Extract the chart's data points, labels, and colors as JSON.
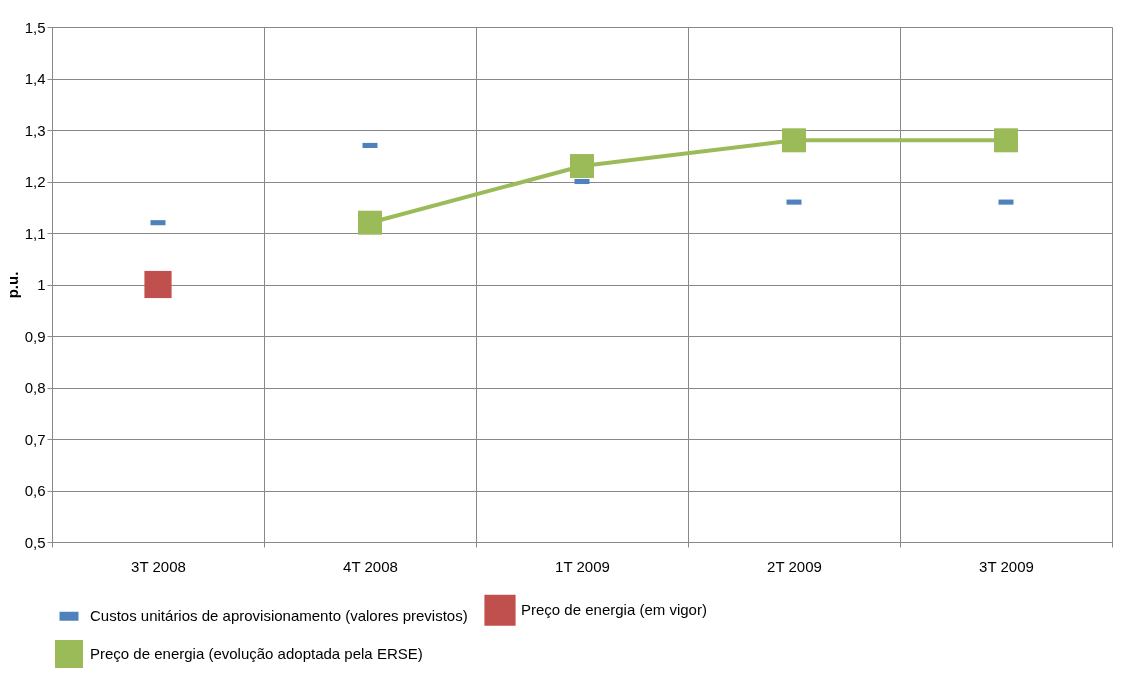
{
  "chart_data": {
    "type": "scatter",
    "ylabel": "p.u.",
    "categories": [
      "3T 2008",
      "4T 2008",
      "1T 2009",
      "2T 2009",
      "3T 2009"
    ],
    "series": [
      {
        "name": "Custos unitários de aprovisionamento (valores previstos)",
        "color": "#4f81bd",
        "values": [
          1.12,
          1.27,
          1.2,
          1.16,
          1.16
        ]
      },
      {
        "name": "Preço de energia (em vigor)",
        "color": "#c0504d",
        "marker": "square",
        "values": [
          1.0,
          null,
          null,
          null,
          null
        ]
      },
      {
        "name": "Preço de energia (evolução adoptada  pela ERSE)",
        "color": "#9bbb59",
        "type": "line",
        "marker": "square",
        "values": [
          null,
          1.12,
          1.23,
          1.28,
          1.28
        ]
      }
    ],
    "ylim": [
      0.5,
      1.5
    ],
    "yticks": [
      {
        "value": 0.5,
        "label": "0,5"
      },
      {
        "value": 0.6,
        "label": "0,6"
      },
      {
        "value": 0.7,
        "label": "0,7"
      },
      {
        "value": 0.8,
        "label": "0,8"
      },
      {
        "value": 0.9,
        "label": "0,9"
      },
      1,
      {
        "value": 1.1,
        "label": "1,1"
      },
      {
        "value": 1.2,
        "label": "1,2"
      },
      {
        "value": 1.3,
        "label": "1,3"
      },
      {
        "value": 1.4,
        "label": "1,4"
      },
      {
        "value": 1.5,
        "label": "1,5"
      }
    ],
    "grid": true,
    "legend": "bottom"
  }
}
